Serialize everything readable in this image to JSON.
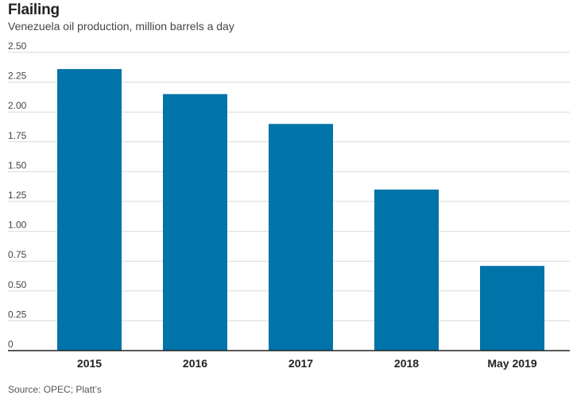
{
  "header": {
    "title": "Flailing",
    "subtitle": "Venezuela oil production, million barrels a day"
  },
  "footer": {
    "source": "Source: OPEC; Platt’s"
  },
  "colors": {
    "bar": "#0073a8",
    "gridline": "#d9d9d9",
    "axis": "#222222"
  },
  "chart_data": {
    "type": "bar",
    "title": "Flailing",
    "subtitle": "Venezuela oil production, million barrels a day",
    "categories": [
      "2015",
      "2016",
      "2017",
      "2018",
      "May 2019"
    ],
    "values": [
      2.36,
      2.15,
      1.9,
      1.35,
      0.71
    ],
    "ylim": [
      0,
      2.5
    ],
    "yticks": [
      0,
      0.25,
      0.5,
      0.75,
      1.0,
      1.25,
      1.5,
      1.75,
      2.0,
      2.25,
      2.5
    ],
    "ytick_labels": [
      "0",
      "0.25",
      "0.50",
      "0.75",
      "1.00",
      "1.25",
      "1.50",
      "1.75",
      "2.00",
      "2.25",
      "2.50"
    ],
    "grid": true,
    "legend": "none"
  }
}
